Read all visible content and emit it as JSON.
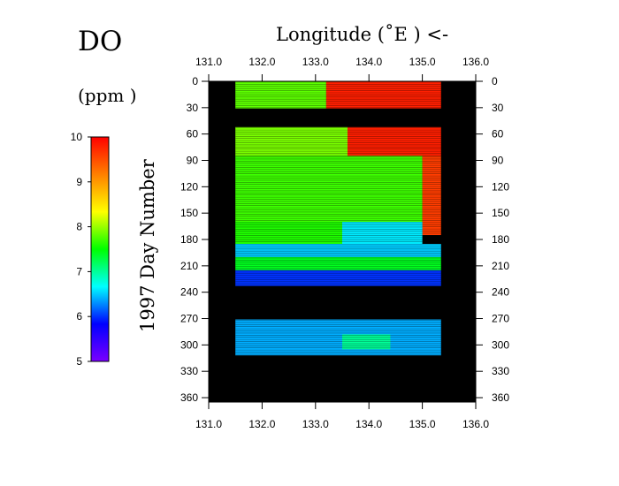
{
  "chart_data": {
    "type": "heatmap",
    "title": "DO",
    "unit_label": "(ppm )",
    "xlabel": "Longitude  (˚E )  <-",
    "ylabel": "1997   Day  Number",
    "xlim": [
      131.0,
      136.0
    ],
    "ylim": [
      0,
      365
    ],
    "x_ticks": [
      "131.0",
      "132.0",
      "133.0",
      "134.0",
      "135.0",
      "136.0"
    ],
    "y_ticks": [
      "0",
      "30",
      "60",
      "90",
      "120",
      "150",
      "180",
      "210",
      "240",
      "270",
      "300",
      "330",
      "360"
    ],
    "colorbar": {
      "min": 5,
      "max": 10,
      "ticks": [
        "5",
        "6",
        "7",
        "8",
        "9",
        "10"
      ],
      "colors": [
        "#7a00ff",
        "#0000ff",
        "#00ffff",
        "#00ff00",
        "#ffff00",
        "#ff8000",
        "#ff0000"
      ]
    },
    "no_data_color": "#000000",
    "data_lon_range": [
      131.5,
      135.35
    ],
    "data_gaps_days": [
      [
        31,
        52
      ],
      [
        233,
        271
      ],
      [
        312,
        365
      ]
    ],
    "segments": [
      {
        "lon_from": 131.5,
        "lon_to": 133.2,
        "day_from": 0,
        "day_to": 31,
        "do_ppm": 7.8
      },
      {
        "lon_from": 133.2,
        "lon_to": 135.35,
        "day_from": 0,
        "day_to": 31,
        "do_ppm": 9.8
      },
      {
        "lon_from": 131.5,
        "lon_to": 133.6,
        "day_from": 52,
        "day_to": 85,
        "do_ppm": 7.9
      },
      {
        "lon_from": 133.6,
        "lon_to": 135.35,
        "day_from": 52,
        "day_to": 85,
        "do_ppm": 9.8
      },
      {
        "lon_from": 131.5,
        "lon_to": 135.0,
        "day_from": 85,
        "day_to": 160,
        "do_ppm": 7.7
      },
      {
        "lon_from": 135.0,
        "lon_to": 135.35,
        "day_from": 85,
        "day_to": 175,
        "do_ppm": 9.6
      },
      {
        "lon_from": 131.5,
        "lon_to": 133.5,
        "day_from": 160,
        "day_to": 185,
        "do_ppm": 7.6
      },
      {
        "lon_from": 133.5,
        "lon_to": 135.0,
        "day_from": 160,
        "day_to": 185,
        "do_ppm": 6.6
      },
      {
        "lon_from": 131.5,
        "lon_to": 135.35,
        "day_from": 185,
        "day_to": 200,
        "do_ppm": 6.5
      },
      {
        "lon_from": 131.5,
        "lon_to": 135.35,
        "day_from": 200,
        "day_to": 215,
        "do_ppm": 7.4
      },
      {
        "lon_from": 131.5,
        "lon_to": 135.35,
        "day_from": 215,
        "day_to": 233,
        "do_ppm": 6.0
      },
      {
        "lon_from": 131.5,
        "lon_to": 135.35,
        "day_from": 271,
        "day_to": 312,
        "do_ppm": 6.4
      },
      {
        "lon_from": 133.5,
        "lon_to": 134.4,
        "day_from": 288,
        "day_to": 305,
        "do_ppm": 7.0
      }
    ]
  }
}
